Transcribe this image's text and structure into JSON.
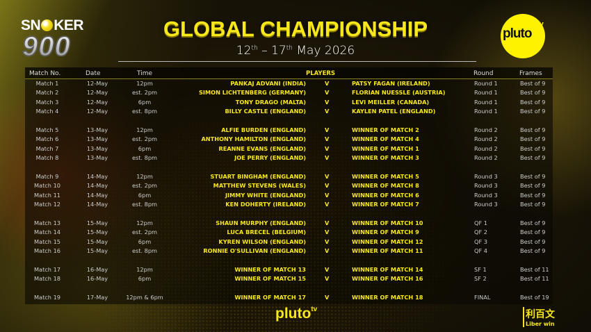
{
  "header": {
    "logo_left": {
      "top": "SN",
      "ball": "O",
      "rest": "KER",
      "number": "900"
    },
    "title": "GLOBAL CHAMPIONSHIP",
    "dates": {
      "d1": "12",
      "sup1": "th",
      "sep": " – ",
      "d2": "17",
      "sup2": "th",
      "rest": " May 2026"
    },
    "logo_right": {
      "main": "pluto",
      "sup": "tv"
    }
  },
  "colors": {
    "accent": "#f7e81c",
    "panel": "#0a0804"
  },
  "table": {
    "columns": {
      "match": "Match No.",
      "date": "Date",
      "time": "Time",
      "players": "PLAYERS",
      "round": "Round",
      "frames": "Frames"
    },
    "vs": "V",
    "rows": [
      {
        "match": "Match 1",
        "date": "12-May",
        "time": "12pm",
        "p1": "PANKAJ ADVANI (INDIA)",
        "p2": "PATSY FAGAN (IRELAND)",
        "round": "Round 1",
        "frames": "Best of 9"
      },
      {
        "match": "Match 2",
        "date": "12-May",
        "time": "est. 2pm",
        "p1": "SIMON LICHTENBERG (GERMANY)",
        "p2": "FLORIAN NUESSLE (AUSTRIA)",
        "round": "Round 1",
        "frames": "Best of 9"
      },
      {
        "match": "Match 3",
        "date": "12-May",
        "time": "6pm",
        "p1": "TONY DRAGO (MALTA)",
        "p2": "LEVI MEILLER (CANADA)",
        "round": "Round 1",
        "frames": "Best of 9"
      },
      {
        "match": "Match 4",
        "date": "12-May",
        "time": "est. 8pm",
        "p1": "BILLY CASTLE (ENGLAND)",
        "p2": "KAYLEN PATEL (ENGLAND)",
        "round": "Round 1",
        "frames": "Best of 9"
      },
      {
        "match": "Match 5",
        "date": "13-May",
        "time": "12pm",
        "p1": "ALFIE BURDEN (ENGLAND)",
        "p2": "WINNER OF MATCH 2",
        "round": "Round 2",
        "frames": "Best of 9"
      },
      {
        "match": "Match 6",
        "date": "13-May",
        "time": "est. 2pm",
        "p1": "ANTHONY HAMILTON (ENGLAND)",
        "p2": "WINNER OF MATCH 4",
        "round": "Round 2",
        "frames": "Best of 9"
      },
      {
        "match": "Match 7",
        "date": "13-May",
        "time": "6pm",
        "p1": "REANNE EVANS (ENGLAND)",
        "p2": "WINNER OF MATCH 1",
        "round": "Round 2",
        "frames": "Best of 9"
      },
      {
        "match": "Match 8",
        "date": "13-May",
        "time": "est. 8pm",
        "p1": "JOE PERRY (ENGLAND)",
        "p2": "WINNER OF MATCH 3",
        "round": "Round 2",
        "frames": "Best of 9"
      },
      {
        "match": "Match 9",
        "date": "14-May",
        "time": "12pm",
        "p1": "STUART BINGHAM (ENGLAND)",
        "p2": "WINNER OF MATCH 5",
        "round": "Round 3",
        "frames": "Best of 9"
      },
      {
        "match": "Match 10",
        "date": "14-May",
        "time": "est. 2pm",
        "p1": "MATTHEW STEVENS (WALES)",
        "p2": "WINNER OF MATCH 8",
        "round": "Round 3",
        "frames": "Best of 9"
      },
      {
        "match": "Match 11",
        "date": "14-May",
        "time": "6pm",
        "p1": "JIMMY WHITE (ENGLAND)",
        "p2": "WINNER OF MATCH 6",
        "round": "Round 3",
        "frames": "Best of 9"
      },
      {
        "match": "Match 12",
        "date": "14-May",
        "time": "est. 8pm",
        "p1": "KEN DOHERTY (IRELAND)",
        "p2": "WINNER OF MATCH 7",
        "round": "Round 3",
        "frames": "Best of 9"
      },
      {
        "match": "Match 13",
        "date": "15-May",
        "time": "12pm",
        "p1": "SHAUN MURPHY (ENGLAND)",
        "p2": "WINNER OF MATCH 10",
        "round": "QF 1",
        "frames": "Best of 9"
      },
      {
        "match": "Match 14",
        "date": "15-May",
        "time": "est. 2pm",
        "p1": "LUCA BRECEL (BELGIUM)",
        "p2": "WINNER OF MATCH 9",
        "round": "QF 2",
        "frames": "Best of 9"
      },
      {
        "match": "Match 15",
        "date": "15-May",
        "time": "6pm",
        "p1": "KYREN WILSON (ENGLAND)",
        "p2": "WINNER OF MATCH 12",
        "round": "QF 3",
        "frames": "Best of 9"
      },
      {
        "match": "Match 16",
        "date": "15-May",
        "time": "est. 8pm",
        "p1": "RONNIE O'SULLIVAN (ENGLAND)",
        "p2": "WINNER OF MATCH 11",
        "round": "QF 4",
        "frames": "Best of 9"
      },
      {
        "match": "Match 17",
        "date": "16-May",
        "time": "12pm",
        "p1": "WINNER OF MATCH 13",
        "p2": "WINNER OF MATCH 14",
        "round": "SF 1",
        "frames": "Best of 11"
      },
      {
        "match": "Match 18",
        "date": "16-May",
        "time": "6pm",
        "p1": "WINNER OF MATCH 15",
        "p2": "WINNER OF MATCH 16",
        "round": "SF 2",
        "frames": "Best of 11"
      },
      {
        "match": "Match 19",
        "date": "17-May",
        "time": "12pm & 6pm",
        "p1": "WINNER OF MATCH 17",
        "p2": "WINNER OF MATCH 18",
        "round": "FINAL",
        "frames": "Best of 19"
      }
    ]
  },
  "footer": {
    "pluto": {
      "main": "pluto",
      "sup": "tv"
    },
    "sponsor": {
      "cjk": "利百文",
      "en": "Liber win"
    }
  }
}
